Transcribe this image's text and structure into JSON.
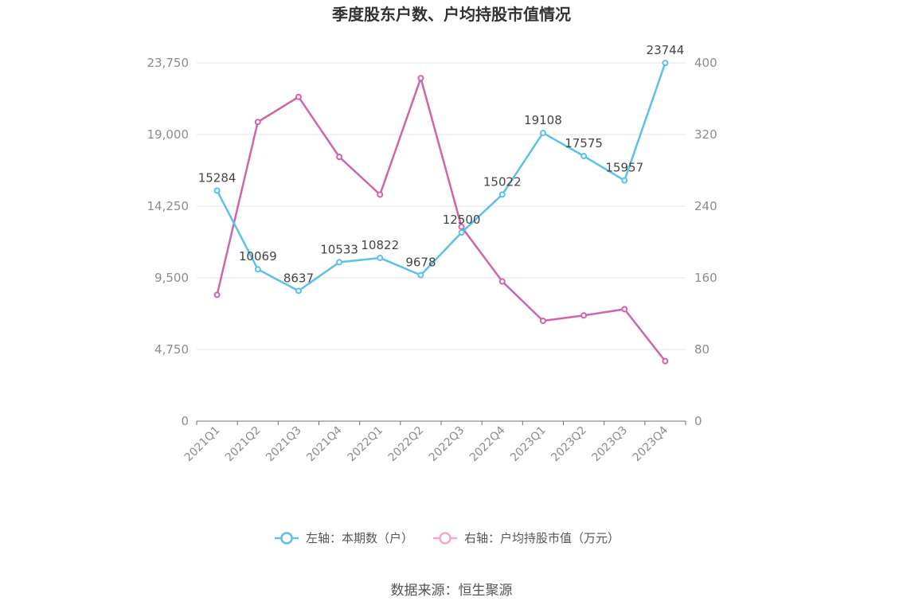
{
  "chart_data": {
    "type": "line",
    "title": "季度股东户数、户均持股市值情况",
    "categories": [
      "2021Q1",
      "2021Q2",
      "2021Q3",
      "2021Q4",
      "2022Q1",
      "2022Q2",
      "2022Q3",
      "2022Q4",
      "2023Q1",
      "2023Q2",
      "2023Q3",
      "2023Q4"
    ],
    "series": [
      {
        "name": "左轴：本期数（户）",
        "axis": "left",
        "color": "#5bc0eb",
        "values": [
          15284,
          10069,
          8637,
          10533,
          10822,
          9678,
          12500,
          15022,
          19108,
          17575,
          15957,
          23744
        ],
        "data_labels": [
          "15284",
          "10069",
          "8637",
          "10533",
          "10822",
          "9678",
          "12500",
          "15022",
          "19108",
          "17575",
          "15957",
          "23744"
        ]
      },
      {
        "name": "右轴：户均持股市值（万元）",
        "axis": "right",
        "color": "#d064a8",
        "values": [
          141,
          334,
          362,
          295,
          253,
          383,
          217,
          156,
          112,
          118,
          125,
          67
        ]
      }
    ],
    "y_left": {
      "min": 0,
      "max": 23750,
      "ticks": [
        "0",
        "4,750",
        "9,500",
        "14,250",
        "19,000",
        "23,750"
      ],
      "tick_values": [
        0,
        4750,
        9500,
        14250,
        19000,
        23750
      ]
    },
    "y_right": {
      "min": 0,
      "max": 400,
      "ticks": [
        "0",
        "80",
        "160",
        "240",
        "320",
        "400"
      ],
      "tick_values": [
        0,
        80,
        160,
        240,
        320,
        400
      ]
    },
    "grid": true,
    "legend_position": "bottom"
  },
  "source": "数据来源：恒生聚源"
}
